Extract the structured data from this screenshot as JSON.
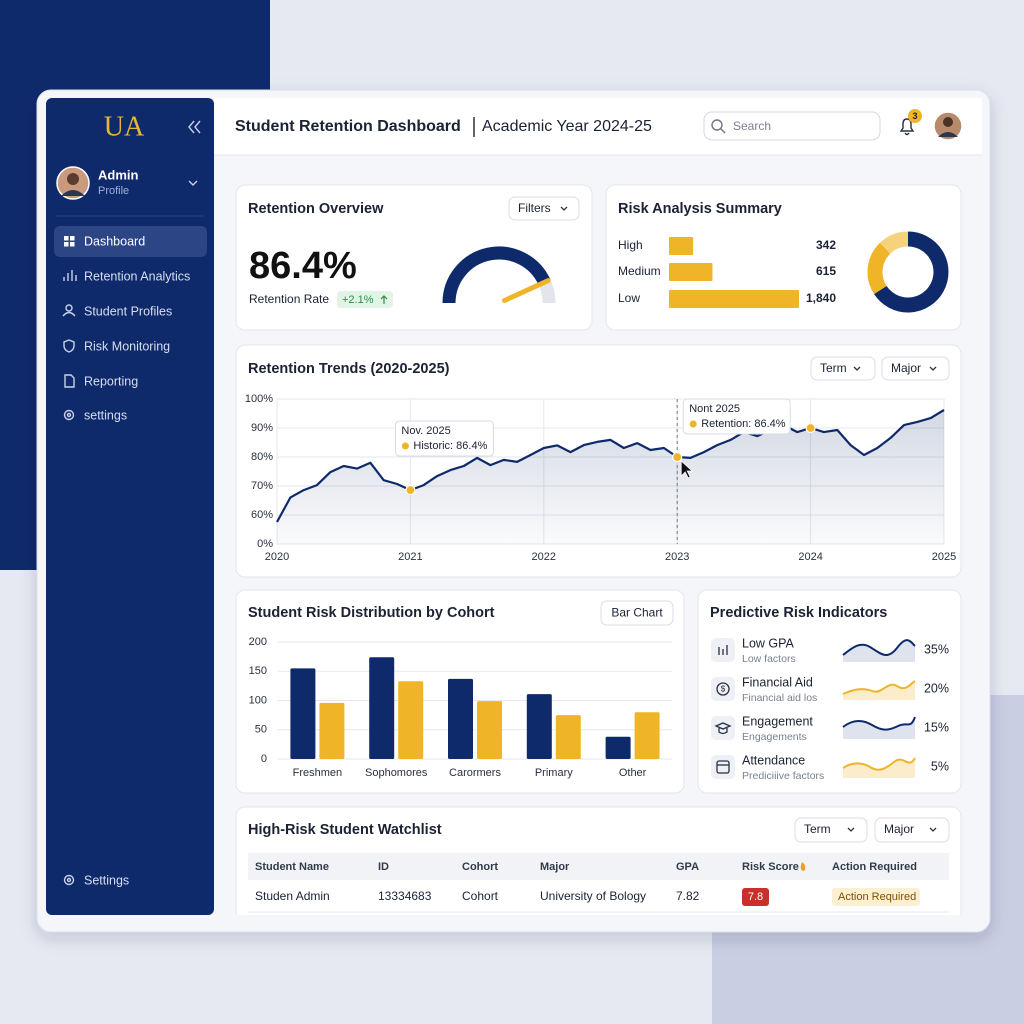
{
  "sidebar": {
    "brand": "UA",
    "user": {
      "name": "Admin",
      "role": "Profile"
    },
    "nav": [
      "Dashboard",
      "Retention Analytics",
      "Student Profiles",
      "Risk Monitoring",
      "Reporting",
      "settings"
    ],
    "footer": "Settings"
  },
  "header": {
    "title": "Student Retention Dashboard",
    "subtitle": "Academic Year 2024-25",
    "search": "Search",
    "notifications": "3"
  },
  "retention_overview": {
    "title": "Retention Overview",
    "button": "Filters",
    "value": 86.4,
    "value_label": "86.4%",
    "label": "Retention Rate",
    "change": "+2.1%",
    "gauge_lim": [
      0,
      100
    ],
    "color": "#0f2a6b",
    "needle_color": "#f0b429"
  },
  "risk_summary": {
    "title": "Risk Analysis Summary",
    "categories": [
      "High",
      "Medium",
      "Low"
    ],
    "values": [
      342,
      615,
      1840
    ],
    "value_labels": [
      "342",
      "615",
      "1,840"
    ],
    "bar_color": "#f0b429",
    "colors": [
      "#f6d27a",
      "#f0b429",
      "#0f2a6b"
    ]
  },
  "chart_data": [
    {
      "type": "line",
      "title": "Retention Trends (2020-2025)",
      "buttons": [
        "Term",
        "Major"
      ],
      "x": [
        2020.0,
        2020.1,
        2020.2,
        2020.3,
        2020.4,
        2020.5,
        2020.6,
        2020.7,
        2020.8,
        2020.9,
        2021.0,
        2021.1,
        2021.2,
        2021.3,
        2021.4,
        2021.5,
        2021.6,
        2021.7,
        2021.8,
        2021.9,
        2022.0,
        2022.1,
        2022.2,
        2022.3,
        2022.4,
        2022.5,
        2022.6,
        2022.7,
        2022.8,
        2022.9,
        2023.0,
        2023.1,
        2023.2,
        2023.3,
        2023.4,
        2023.5,
        2023.6,
        2023.7,
        2023.8,
        2023.9,
        2024.0,
        2024.1,
        2024.2,
        2024.3,
        2024.4,
        2024.5,
        2024.6,
        2024.7,
        2024.8,
        2024.9,
        2025.0
      ],
      "series": [
        {
          "color": "#0f2a6b",
          "values": [
            57.6,
            66,
            68.6,
            70.3,
            74.8,
            76.9,
            76,
            78,
            72,
            70.7,
            68.6,
            70.3,
            73.4,
            75.5,
            76.9,
            79.7,
            77.2,
            79,
            78.3,
            80.7,
            83.1,
            84,
            81.7,
            84.1,
            85.2,
            85.9,
            83.1,
            84.8,
            82.4,
            83.1,
            80,
            79.7,
            81.7,
            84.1,
            85.9,
            88.6,
            87.2,
            89.3,
            91,
            88.6,
            90,
            88.6,
            89.3,
            84.1,
            80.7,
            83.1,
            86.6,
            91,
            92.1,
            93.4,
            96.2
          ]
        }
      ],
      "xlim": [
        2020,
        2025
      ],
      "xticks": [
        2020,
        2021,
        2022,
        2023,
        2024,
        2025
      ],
      "ylim": [
        0,
        100
      ],
      "y_axis_break": [
        0,
        50
      ],
      "yticks": [
        {
          "value": 0,
          "label": "0%"
        },
        {
          "value": 60,
          "label": "60%"
        },
        {
          "value": 70,
          "label": "70%"
        },
        {
          "value": 80,
          "label": "80%"
        },
        {
          "value": 90,
          "label": "90%"
        },
        {
          "value": 100,
          "label": "100%"
        }
      ],
      "grid": true,
      "highlight": [
        10,
        30,
        40
      ],
      "highlight_color": "#f0b429",
      "annotations": [
        {
          "title": "Nov. 2025",
          "text": "Historic: 86.4%"
        },
        {
          "title": "Nont 2025",
          "text": "Retention: 86.4%"
        }
      ]
    },
    {
      "type": "bar",
      "title": "Student Risk Distribution by Cohort",
      "button": "Bar Chart",
      "categories": [
        "Freshmen",
        "Sophomores",
        "Carormers",
        "Primary",
        "Other"
      ],
      "series": [
        {
          "color": "#0f2a6b",
          "values": [
            155,
            174,
            137,
            111,
            38
          ]
        },
        {
          "color": "#f0b429",
          "values": [
            96,
            133,
            99,
            75,
            80
          ]
        }
      ],
      "ylim": [
        0,
        200
      ],
      "yticks": [
        0,
        50,
        100,
        150,
        200
      ],
      "grid": true
    }
  ],
  "predictive": {
    "title": "Predictive Risk Indicators",
    "items": [
      {
        "label": "Low GPA",
        "detail": "Low factors",
        "value": "35%"
      },
      {
        "label": "Financial Aid",
        "detail": "Financial aid los",
        "value": "20%"
      },
      {
        "label": "Engagement",
        "detail": "Engagements",
        "value": "15%"
      },
      {
        "label": "Attendance",
        "detail": "Prediciiive factors",
        "value": "5%"
      }
    ]
  },
  "watchlist": {
    "title": "High-Risk Student Watchlist",
    "buttons": [
      "Term",
      "Major"
    ],
    "columns": [
      "Student Name",
      "ID",
      "Cohort",
      "Major",
      "GPA",
      "Risk Score",
      "Action Required"
    ],
    "rows": [
      [
        "Studen Admin",
        "13334683",
        "Cohort",
        "University of Bology",
        "7.82",
        "7.8",
        "Action Required"
      ]
    ]
  }
}
